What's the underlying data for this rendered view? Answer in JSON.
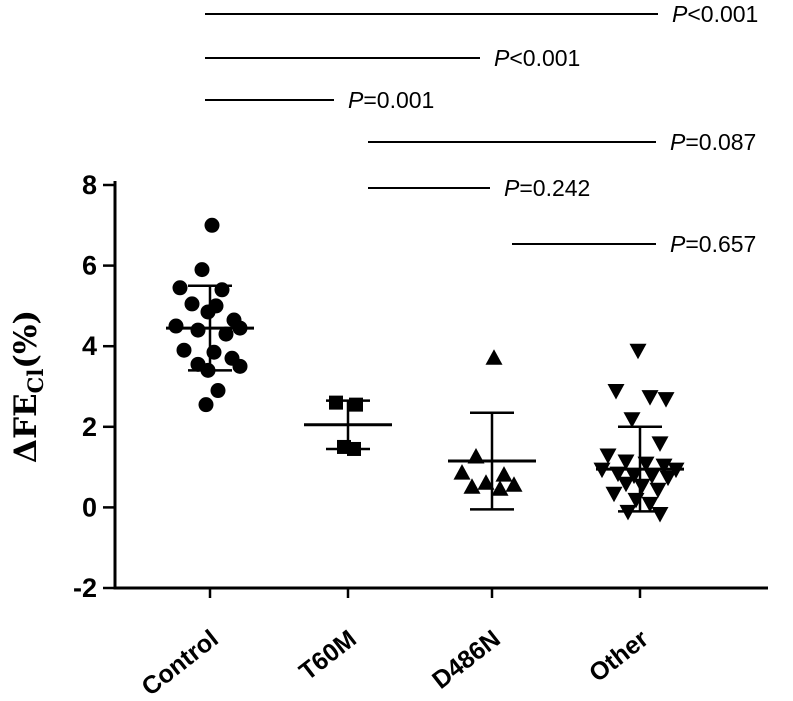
{
  "chart_data": {
    "type": "scatter",
    "title": "",
    "xlabel": "",
    "ylabel": {
      "prefix": "ΔFE",
      "sub": "Cl",
      "suffix": "(%)"
    },
    "ylim": [
      -2,
      8
    ],
    "yticks": [
      "-2",
      "0",
      "2",
      "4",
      "6",
      "8"
    ],
    "ytick_values": [
      -2,
      0,
      2,
      4,
      6,
      8
    ],
    "grid": "off",
    "legend": "none",
    "marker_color": "#000000",
    "categories": [
      "Control",
      "T60M",
      "D486N",
      "Other"
    ],
    "groups": [
      {
        "name": "Control",
        "marker": "circle",
        "mean": 4.45,
        "err_high": 5.5,
        "err_low": 3.4,
        "points": [
          [
            2,
            7.0
          ],
          [
            -8,
            5.9
          ],
          [
            -30,
            5.45
          ],
          [
            12,
            5.4
          ],
          [
            -18,
            5.05
          ],
          [
            6,
            5.0
          ],
          [
            -2,
            4.85
          ],
          [
            24,
            4.65
          ],
          [
            -34,
            4.5
          ],
          [
            30,
            4.45
          ],
          [
            -12,
            4.4
          ],
          [
            16,
            4.3
          ],
          [
            -26,
            3.9
          ],
          [
            4,
            3.85
          ],
          [
            22,
            3.7
          ],
          [
            -12,
            3.55
          ],
          [
            30,
            3.5
          ],
          [
            -2,
            3.4
          ],
          [
            8,
            2.9
          ],
          [
            -4,
            2.55
          ]
        ]
      },
      {
        "name": "T60M",
        "marker": "square",
        "mean": 2.05,
        "err_high": 2.65,
        "err_low": 1.45,
        "points": [
          [
            -12,
            2.6
          ],
          [
            8,
            2.55
          ],
          [
            -4,
            1.5
          ],
          [
            6,
            1.45
          ]
        ]
      },
      {
        "name": "D486N",
        "marker": "triangle-up",
        "mean": 1.15,
        "err_high": 2.35,
        "err_low": -0.05,
        "points": [
          [
            2,
            3.7
          ],
          [
            -16,
            1.25
          ],
          [
            -30,
            0.85
          ],
          [
            12,
            0.8
          ],
          [
            -6,
            0.6
          ],
          [
            22,
            0.55
          ],
          [
            -20,
            0.5
          ],
          [
            8,
            0.45
          ]
        ]
      },
      {
        "name": "Other",
        "marker": "triangle-down",
        "mean": 0.95,
        "err_high": 2.0,
        "err_low": -0.1,
        "points": [
          [
            -2,
            3.9
          ],
          [
            -24,
            2.9
          ],
          [
            10,
            2.75
          ],
          [
            26,
            2.7
          ],
          [
            -8,
            2.2
          ],
          [
            20,
            1.6
          ],
          [
            -32,
            1.3
          ],
          [
            -14,
            1.15
          ],
          [
            6,
            1.1
          ],
          [
            24,
            1.05
          ],
          [
            -38,
            0.95
          ],
          [
            36,
            0.95
          ],
          [
            -22,
            0.85
          ],
          [
            -6,
            0.8
          ],
          [
            12,
            0.8
          ],
          [
            28,
            0.75
          ],
          [
            -14,
            0.6
          ],
          [
            2,
            0.55
          ],
          [
            18,
            0.45
          ],
          [
            -26,
            0.35
          ],
          [
            -4,
            0.2
          ],
          [
            10,
            0.1
          ],
          [
            -12,
            -0.1
          ],
          [
            20,
            -0.15
          ]
        ]
      }
    ],
    "comparisons": [
      {
        "from": 0,
        "to": 3,
        "label": "P<0.001"
      },
      {
        "from": 0,
        "to": 2,
        "label": "P<0.001"
      },
      {
        "from": 0,
        "to": 1,
        "label": "P=0.001"
      },
      {
        "from": 1,
        "to": 3,
        "label": "P=0.087"
      },
      {
        "from": 1,
        "to": 2,
        "label": "P=0.242"
      },
      {
        "from": 2,
        "to": 3,
        "label": "P=0.657"
      }
    ]
  }
}
